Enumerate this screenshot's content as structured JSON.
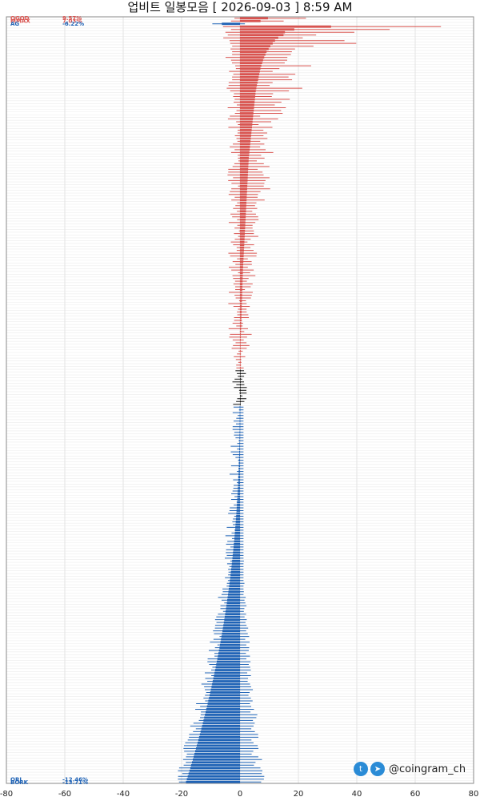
{
  "title": "업비트 일봉모음 [ 2026-09-03 ]  8:59 AM",
  "brand": {
    "twitter_icon": "twitter-bird-icon",
    "telegram_icon": "telegram-plane-icon",
    "handle": "@coingram_ch"
  },
  "colors": {
    "up": "#d9534f",
    "flat": "#111111",
    "down": "#1f63b6",
    "grid": "#e3e3e3"
  },
  "chart_data": {
    "type": "bar",
    "orientation": "horizontal",
    "xlim": [
      -80,
      80
    ],
    "xticks": [
      -80,
      -60,
      -40,
      -20,
      0,
      20,
      40,
      60,
      80
    ],
    "grid": true,
    "top_labels": [
      {
        "name": "OGOD",
        "pct": "9.57%",
        "color": "up"
      },
      {
        "name": "MMAX",
        "pct": "7.03%",
        "color": "up"
      },
      {
        "name": "AG",
        "pct": "-6.22%",
        "color": "down"
      }
    ],
    "bottom_labels": [
      {
        "name": "ORJ",
        "pct": "-12.46%",
        "color": "down"
      },
      {
        "name": "BORK",
        "pct": "-13.71%",
        "color": "down"
      }
    ],
    "up_closes": [
      9.57,
      7.03,
      46.5,
      31.2,
      18.6,
      15.4,
      14.9,
      13.1,
      12.0,
      11.2,
      10.4,
      9.8,
      9.1,
      8.7,
      8.3,
      7.9,
      7.6,
      7.3,
      7.0,
      6.8,
      6.6,
      6.4,
      6.2,
      6.0,
      5.8,
      5.6,
      5.4,
      5.3,
      5.2,
      5.1,
      5.0,
      4.9,
      4.8,
      4.7,
      4.6,
      4.5,
      4.4,
      4.3,
      4.2,
      4.1,
      4.0,
      3.9,
      3.8,
      3.7,
      3.6,
      3.5,
      3.4,
      3.3,
      3.2,
      3.1,
      3.0,
      2.95,
      2.9,
      2.85,
      2.8,
      2.75,
      2.7,
      2.65,
      2.6,
      2.55,
      2.5,
      2.45,
      2.4,
      2.35,
      2.3,
      2.25,
      2.2,
      2.15,
      2.1,
      2.05,
      2.0,
      1.95,
      1.9,
      1.85,
      1.8,
      1.75,
      1.7,
      1.65,
      1.6,
      1.55,
      1.5,
      1.45,
      1.4,
      1.35,
      1.3,
      1.25,
      1.2,
      1.15,
      1.1,
      1.05,
      1.0,
      0.97,
      0.94,
      0.91,
      0.88,
      0.85,
      0.82,
      0.79,
      0.76,
      0.73,
      0.7,
      0.67,
      0.64,
      0.61,
      0.58,
      0.55,
      0.52,
      0.49,
      0.46,
      0.43,
      0.4,
      0.37,
      0.34,
      0.31,
      0.28,
      0.25,
      0.22,
      0.19,
      0.16,
      0.13,
      0.1,
      0.08,
      0.06,
      0.04,
      0.02,
      0.01
    ],
    "flat_count": 13,
    "down_count": 135,
    "down_range": [
      -0.1,
      -18.5
    ]
  }
}
